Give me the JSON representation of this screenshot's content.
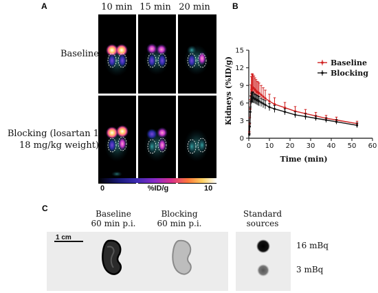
{
  "panel_a": {
    "letter": "A",
    "time_labels": [
      "10 min",
      "15 min",
      "20 min"
    ],
    "rows": [
      {
        "label_lines": [
          "Baseline"
        ]
      },
      {
        "label_lines": [
          "Blocking (losartan 1",
          "18 mg/kg weight)"
        ]
      }
    ],
    "colorbar": {
      "min": "0",
      "unit": "%ID/g",
      "max": "10"
    }
  },
  "panel_b": {
    "letter": "B"
  },
  "chart_data": {
    "type": "line",
    "title": "",
    "xlabel": "Time (min)",
    "ylabel": "Kidneys (%ID/g)",
    "xlim": [
      0,
      60
    ],
    "ylim": [
      0,
      15
    ],
    "xticks": [
      0,
      10,
      20,
      30,
      40,
      50,
      60
    ],
    "yticks": [
      0,
      3,
      6,
      9,
      12,
      15
    ],
    "legend_position": "top-right",
    "grid": false,
    "series": [
      {
        "name": "Baseline",
        "color": "#d01f1f",
        "x": [
          0.25,
          0.5,
          0.75,
          1,
          1.25,
          1.5,
          1.75,
          2,
          2.5,
          3,
          3.5,
          4,
          4.5,
          5,
          6,
          7,
          8,
          10,
          12.5,
          17.5,
          22.5,
          27.5,
          32.5,
          37.5,
          42.5,
          52.5
        ],
        "y": [
          0.8,
          2.5,
          5.0,
          7.2,
          8.3,
          8.6,
          8.7,
          8.6,
          8.5,
          8.3,
          8.1,
          7.9,
          7.8,
          7.7,
          7.4,
          7.1,
          6.8,
          6.3,
          5.8,
          5.2,
          4.6,
          4.2,
          3.8,
          3.4,
          3.1,
          2.5
        ],
        "err": [
          0.3,
          1.0,
          1.6,
          1.9,
          2.2,
          2.3,
          2.3,
          2.2,
          2.1,
          2.0,
          1.9,
          1.8,
          1.8,
          1.7,
          1.6,
          1.5,
          1.4,
          1.2,
          1.1,
          0.9,
          0.8,
          0.7,
          0.6,
          0.5,
          0.5,
          0.4
        ]
      },
      {
        "name": "Blocking",
        "color": "#111111",
        "x": [
          0.25,
          0.5,
          0.75,
          1,
          1.25,
          1.5,
          1.75,
          2,
          2.5,
          3,
          3.5,
          4,
          4.5,
          5,
          6,
          7,
          8,
          10,
          12.5,
          17.5,
          22.5,
          27.5,
          32.5,
          37.5,
          42.5,
          52.5
        ],
        "y": [
          0.6,
          2.0,
          4.5,
          6.3,
          6.8,
          7.0,
          7.0,
          6.9,
          6.8,
          6.7,
          6.6,
          6.5,
          6.4,
          6.3,
          6.1,
          5.9,
          5.7,
          5.3,
          5.0,
          4.5,
          4.0,
          3.7,
          3.4,
          3.1,
          2.8,
          2.2
        ],
        "err": [
          0.2,
          0.6,
          0.8,
          0.9,
          0.9,
          0.9,
          0.9,
          0.9,
          0.8,
          0.8,
          0.8,
          0.8,
          0.8,
          0.8,
          0.7,
          0.7,
          0.7,
          0.6,
          0.6,
          0.5,
          0.5,
          0.5,
          0.4,
          0.4,
          0.4,
          0.4
        ]
      }
    ]
  },
  "panel_c": {
    "letter": "C",
    "scale_bar": "1 cm",
    "labels": [
      {
        "lines": [
          "Baseline",
          "60 min p.i."
        ]
      },
      {
        "lines": [
          "Blocking",
          "60 min p.i."
        ]
      },
      {
        "lines": [
          "Standard",
          "sources"
        ]
      }
    ],
    "sources": [
      "16 mBq",
      "3 mBq"
    ]
  }
}
